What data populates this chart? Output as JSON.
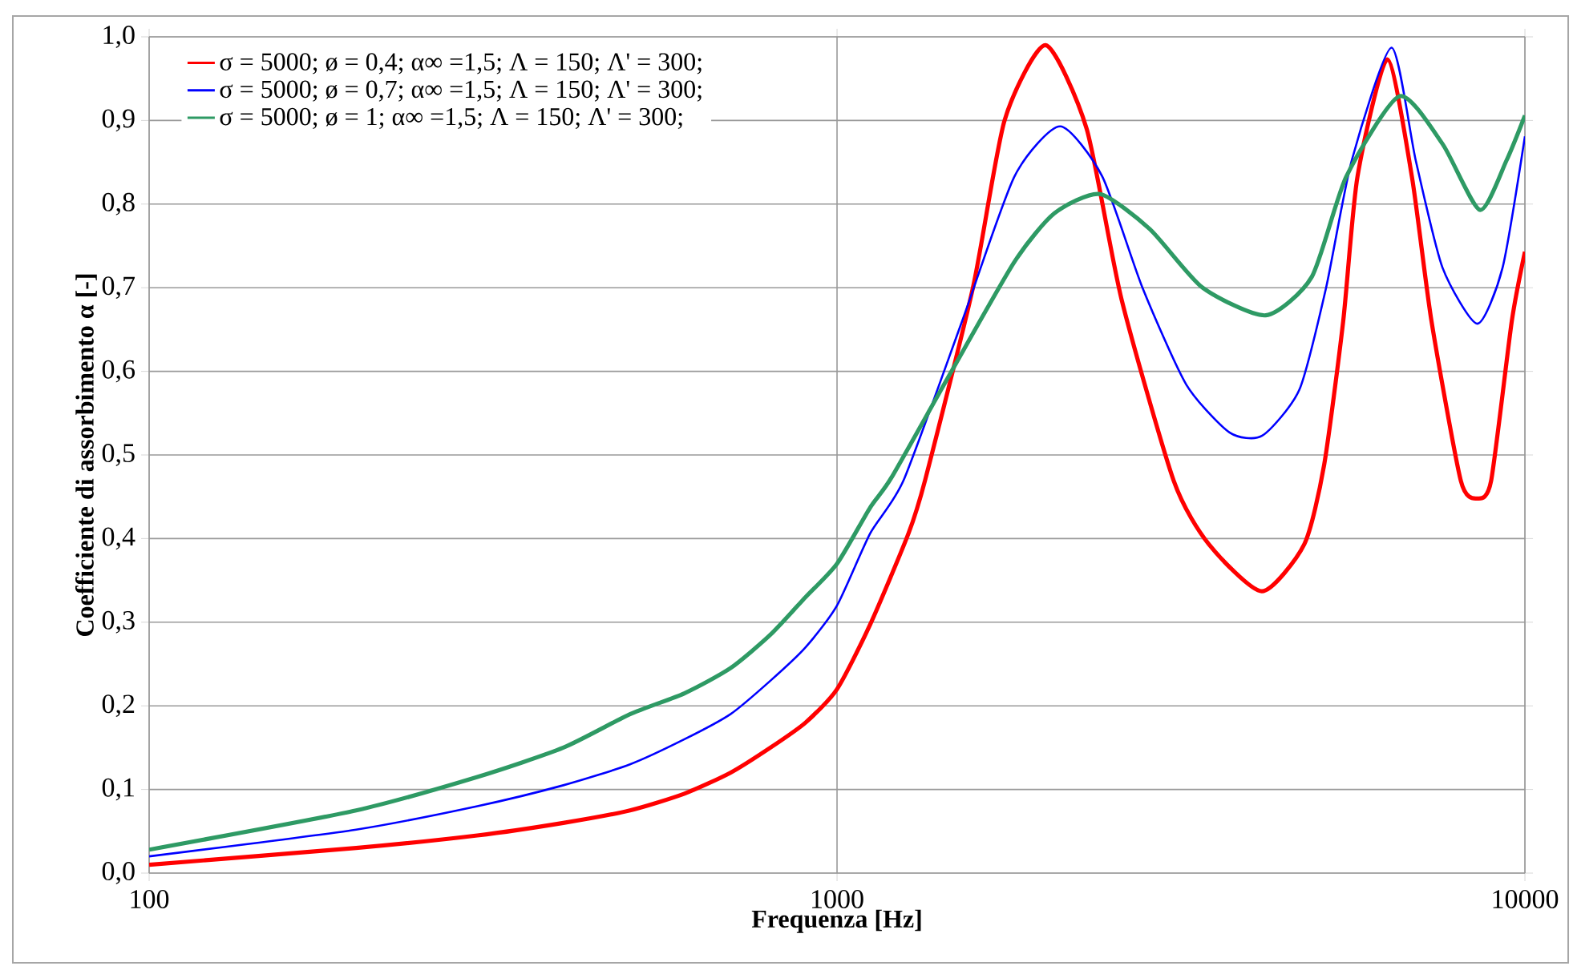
{
  "chart_data": {
    "type": "line",
    "xlabel": "Frequenza [Hz]",
    "ylabel": "Coefficiente di assorbimento α [-]",
    "log": "x",
    "xlim": [
      100,
      10000
    ],
    "ylim": [
      0,
      1
    ],
    "xticks": [
      100,
      1000,
      10000
    ],
    "yticks": [
      {
        "value": 0,
        "label": "0,0"
      },
      {
        "value": 0.1,
        "label": "0,1"
      },
      {
        "value": 0.2,
        "label": "0,2"
      },
      {
        "value": 0.3,
        "label": "0,3"
      },
      {
        "value": 0.4,
        "label": "0,4"
      },
      {
        "value": 0.5,
        "label": "0,5"
      },
      {
        "value": 0.6,
        "label": "0,6"
      },
      {
        "value": 0.7,
        "label": "0,7"
      },
      {
        "value": 0.8,
        "label": "0,8"
      },
      {
        "value": 0.9,
        "label": "0,9"
      },
      {
        "value": 1,
        "label": "1,0"
      }
    ],
    "grid": true,
    "legend": "top left",
    "marker": "none",
    "line_style": "solid",
    "series": [
      {
        "name": "σ = 5000; ø = 0,4; α∞ =1,5; Λ = 150; Λ' = 300;",
        "color": "#ff0000",
        "x": [
          100,
          200,
          300,
          400,
          500,
          600,
          700,
          800,
          900,
          1000,
          1117,
          1270,
          1343,
          1576,
          1752,
          2010,
          2306,
          2592,
          3087,
          3473,
          4145,
          4777,
          5106,
          5443,
          5710,
          6310,
          6850,
          7315,
          8070,
          8530,
          8930,
          9570,
          10000
        ],
        "values": [
          0.01,
          0.03,
          0.045,
          0.06,
          0.075,
          0.095,
          0.12,
          0.15,
          0.18,
          0.22,
          0.297,
          0.406,
          0.47,
          0.7,
          0.9,
          0.99,
          0.89,
          0.686,
          0.469,
          0.393,
          0.337,
          0.393,
          0.488,
          0.66,
          0.833,
          0.973,
          0.833,
          0.66,
          0.469,
          0.448,
          0.469,
          0.66,
          0.743
        ]
      },
      {
        "name": "σ = 5000; ø = 0,7; α∞ =1,5; Λ = 150; Λ' = 300;",
        "color": "#0000ff",
        "x": [
          100,
          200,
          300,
          400,
          500,
          600,
          700,
          800,
          900,
          1000,
          1117,
          1250,
          1520,
          1811,
          2110,
          2430,
          2780,
          3220,
          3720,
          4150,
          4700,
          5140,
          5600,
          6400,
          6940,
          7590,
          8530,
          9280,
          10000
        ],
        "values": [
          0.02,
          0.052,
          0.08,
          0.105,
          0.13,
          0.16,
          0.19,
          0.23,
          0.27,
          0.32,
          0.406,
          0.47,
          0.66,
          0.833,
          0.893,
          0.833,
          0.7,
          0.584,
          0.527,
          0.523,
          0.578,
          0.7,
          0.852,
          0.987,
          0.852,
          0.724,
          0.657,
          0.724,
          0.881
        ]
      },
      {
        "name": "σ = 5000; ø = 1; α∞ =1,5; Λ = 150; Λ' = 300;",
        "color": "#2e9a64",
        "x": [
          100,
          200,
          300,
          400,
          500,
          600,
          700,
          800,
          900,
          1000,
          1117,
          1200,
          1460,
          1811,
          2070,
          2410,
          2850,
          3400,
          4200,
          4900,
          5500,
          6570,
          7590,
          8600,
          9400,
          10000
        ],
        "values": [
          0.028,
          0.075,
          0.115,
          0.15,
          0.19,
          0.215,
          0.245,
          0.285,
          0.33,
          0.37,
          0.437,
          0.473,
          0.597,
          0.731,
          0.789,
          0.812,
          0.77,
          0.7,
          0.667,
          0.713,
          0.833,
          0.929,
          0.872,
          0.793,
          0.852,
          0.906
        ]
      }
    ]
  }
}
